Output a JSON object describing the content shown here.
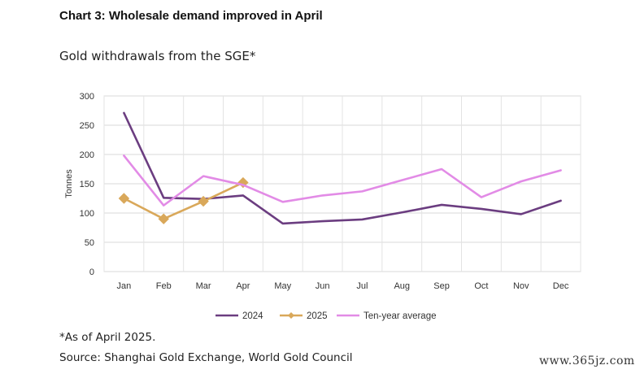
{
  "header": {
    "title": "Chart 3: Wholesale demand improved in April",
    "subtitle": "Gold withdrawals from the SGE*"
  },
  "footnotes": {
    "note": "*As of April 2025.",
    "source": "Source: Shanghai Gold Exchange, World Gold Council"
  },
  "watermark": "www.365jz.com",
  "chart_data": {
    "type": "line",
    "title": "Gold withdrawals from the SGE*",
    "ylabel": "Tonnes",
    "xlabel": "",
    "ylim": [
      0,
      300
    ],
    "yticks": [
      0,
      50,
      100,
      150,
      200,
      250,
      300
    ],
    "grid": true,
    "legend_position": "bottom",
    "categories": [
      "Jan",
      "Feb",
      "Mar",
      "Apr",
      "May",
      "Jun",
      "Jul",
      "Aug",
      "Sep",
      "Oct",
      "Nov",
      "Dec"
    ],
    "series": [
      {
        "name": "2024",
        "color": "#6b3d80",
        "marker": "none",
        "values": [
          271,
          126,
          124,
          130,
          82,
          86,
          89,
          101,
          114,
          107,
          98,
          121
        ]
      },
      {
        "name": "2025",
        "color": "#d9a85a",
        "marker": "diamond",
        "values": [
          125,
          90,
          120,
          152,
          null,
          null,
          null,
          null,
          null,
          null,
          null,
          null
        ]
      },
      {
        "name": "Ten-year average",
        "color": "#e28be6",
        "marker": "none",
        "values": [
          198,
          113,
          163,
          148,
          119,
          130,
          137,
          156,
          175,
          127,
          154,
          173
        ]
      }
    ]
  }
}
